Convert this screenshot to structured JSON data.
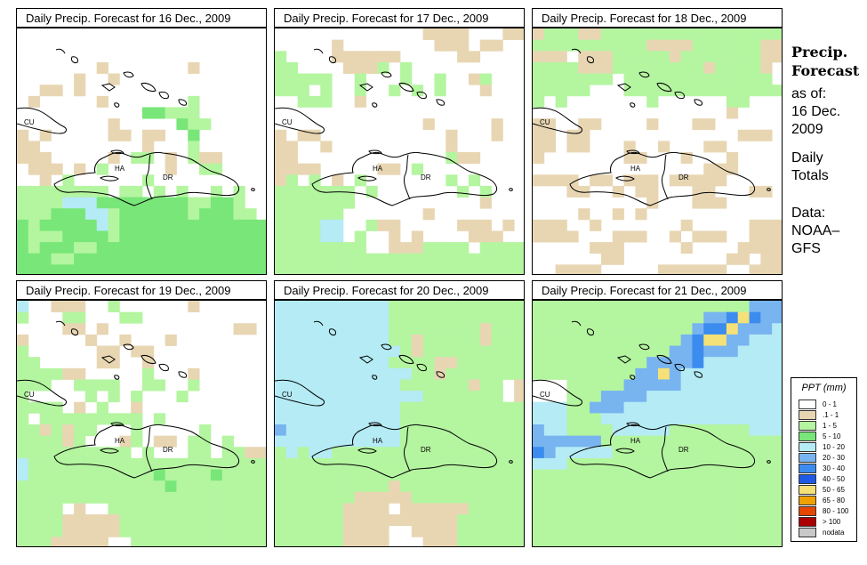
{
  "panels": [
    {
      "title": "Daily Precip. Forecast for  16 Dec., 2009"
    },
    {
      "title": "Daily Precip. Forecast for  17 Dec., 2009"
    },
    {
      "title": "Daily Precip. Forecast for  18 Dec., 2009"
    },
    {
      "title": "Daily Precip. Forecast for  19 Dec., 2009"
    },
    {
      "title": "Daily Precip. Forecast for  20 Dec., 2009"
    },
    {
      "title": "Daily Precip. Forecast for  21 Dec., 2009"
    }
  ],
  "map_labels": {
    "cuba": "CU",
    "haiti": "HA",
    "dr": "DR"
  },
  "side": {
    "title_line1": "Precip.",
    "title_line2": "Forecast",
    "asof": "as of:",
    "date_line1": "16 Dec.",
    "date_line2": "2009",
    "daily1": "Daily",
    "daily2": "Totals",
    "data1": "Data:",
    "data2": "NOAA–",
    "data3": "GFS"
  },
  "legend": {
    "title": "PPT (mm)",
    "items": [
      {
        "label": "0 - 1",
        "color": "#ffffff"
      },
      {
        "label": ".1 - 1",
        "color": "#e8d6b3"
      },
      {
        "label": "1 - 5",
        "color": "#b4f5a0"
      },
      {
        "label": "5 - 10",
        "color": "#78e678"
      },
      {
        "label": "10 - 20",
        "color": "#b4ebf5"
      },
      {
        "label": "20 - 30",
        "color": "#78b4f0"
      },
      {
        "label": "30 - 40",
        "color": "#3c8cf0"
      },
      {
        "label": "40 - 50",
        "color": "#1e5ae6"
      },
      {
        "label": "50 - 65",
        "color": "#f5e178"
      },
      {
        "label": "65 - 80",
        "color": "#f0a000"
      },
      {
        "label": "80 - 100",
        "color": "#e64600"
      },
      {
        "label": "> 100",
        "color": "#aa0000"
      },
      {
        "label": "nodata",
        "color": "#c8c8c8"
      }
    ]
  },
  "grids": [
    [
      "......................",
      "......................",
      "......................",
      ".......T.......T......",
      ".....T..T.............",
      "..TT.T................",
      ".T.....T.......L......",
      "...........GGLLL......",
      "........T.....GLL.....",
      "T.T.....TT.TT..G......",
      "TT.........T...L......",
      "TTT.....T.LL.T.LTT....",
      ".TTT.T.L.....T..LL....",
      "..T.L......L..........",
      "LLLLLLLL.LL.L.L..L.L..",
      "LLLLBBBGGGGGGGGLLGGL..",
      "LLLGGGBBLGGGGGGLGGGLL.",
      "GLGGGGGBLGGGGGGGGGGGGG",
      "GLLLGGGGLGGGGGGGGGGGGG",
      "GLGGGLLGGGGGGGGGGGGGGG",
      "GGGLLGGGGGGGGGGGGGGGGG",
      "GGGGGGGGGGGGGGGGGGGGGG"
    ],
    [
      ".............TTTT...TT",
      ".....T........TTT.TT..",
      "L....TTTTTT.....TT....",
      "LL....TTTL.L..........",
      "LLLLL..L...L..L..TL...",
      "LLL.L..L..L.L.L...T...",
      "..LLL..T..............",
      "......................",
      ".............T.....T..",
      "T.TT...........T...T..",
      "TT..T..........T......",
      "TT.............LTT....",
      "TTTT.....TT.L.........",
      "TL.L.T.L.......L.L....",
      "LLLLLLL.L.......L.L...",
      "LLLLLLL...........T...",
      "LLLLLL.......T........",
      "LLLLBB..LTT.....TTT.T.",
      "LLLLBB.L..T.T....TTT..",
      "LLLLLLLL..TTTLLLL.LLLL",
      "LLLLLLLLLLLLLLLLLLLLLL",
      "LLLLLLLLLLLLLLLLLLLLLL"
    ],
    [
      "TLLLTTLLLLLLLLLLLLLLLL",
      "LLLLLLLLLLTTTTLLLLLLTT",
      "TTT.TTTLLLLLTLLLLLLLTT",
      "LLLLTTTLLLLLLLLTLLLLT.",
      "LLLLLLL.LLLLLLLLLLLLL.",
      "LLLLL...LLLLLLLLLLLLLL",
      "L.L.......L......LL...",
      ".................T....",
      "TT..TT....T...TT......",
      "TT.TT.............TTT.",
      "TT.TT...T..T...TT.....",
      "T.......TT...T...T....",
      "...............TTT....",
      "TTTT.TT.TTT.TTTTT.....",
      "...TT..T.TT...TT...TT.",
      "..........T...TTT.....",
      "....T..T.T............",
      "TTT..T.......T.....TTT",
      "TTTT...TTT..T.TTT..TTT",
      ".....TTT.....T....TTTT",
      "......TT.........TT.TT",
      "..TTTT.....TTTTTT..TTT"
    ],
    [
      "B..TTT..L......T......",
      "L...LL...LL...........",
      "....TT.T...........TT.",
      "T.....T..T...T........",
      "L......TT.TT..........",
      "LL.....TT..T..........",
      "LLLLTT.....L...T......",
      "LLL..LLLL..LL..L......",
      "L.....L.L.L...L.......",
      "LLLL.T.L..T...........",
      "L.LLLLLLLLL.L.........",
      "LLTLTLL...L.....L.....",
      "LLLLTL...TL.TT.LL.L...",
      "LLLLLLLLLL.L...LL.LLTT",
      "BLLLLLLLLLLLLLLLLLLLLL",
      "BLLLLLLLLLLLGLLLLGLLLL",
      "LLLLLLLLLLLLLGLLLLLLLL",
      "LLLLLLLLLLLLLLLLLLLLLL",
      "LLLL.T..LLLLLLLLLLLLLL",
      "LLLLTTTTTLLLLLLLLLLLLL",
      "LLLLTTTTTLLLLLLLLLLLLL",
      "LLLTTTTT..LLLLLLLLLLLL"
    ],
    [
      "BBBBBBBBBBLLLLLLLLLLLL",
      "BBBBBBBBBBLLLLLLLLLLLL",
      "BBBBBBBBBBLLLLLLLLTLLL",
      "BBBBBBBBBBLLTLLLLLTLLL",
      "BBBBBBBBBBBLTLLLLLLLLL",
      "BBBBBBBBBBLLLLTTLLLLLL",
      "BBBBBBBBBBBBLLTLLLLLLL",
      "BBBBBBBBBBBLLLLLLTLL.T",
      "BBBBBBBBBBBBBLLLLLLL.T",
      "BBBBBBBBBBBLLLLLLLLLLL",
      "BBBBBBBBBBBLLLLLLLLLLL",
      "MBBBBBBBBBBLLLLLLLLLLL",
      "BBBBBBBBBBBLLLLLLLLLLL",
      "LBLBBLLLLLLLLLLLLLLLLL",
      "LLLLLLLLLLLLLLLLLLLLLL",
      "LLLLLLLLLLLLLLLLLLLLLL",
      "LLLLLLLLLLTLLLLLLLLLLL",
      "LLLLLLLTTTTTLLLLLLLLLL",
      "LLLLLLTTTT.TTTTTTLLLLL",
      "LLLLLLTTTTTTTTTTLLLLLL",
      "LLLLLLTTTT..TTTTLLLLLL",
      "LLLLLLTTTT...TTTLLLLLL"
    ],
    [
      "LLLLLLLLLLLLLLLLLLLMMM",
      "LLLLLLLLLLLLLLLMMDYDMM",
      "LLLLLLLLLLLLLLMDDYMMMB",
      "LLLLLLLLLLLLLMDYYMMBBB",
      "LLLLLLLLLLLLMMDMMMBBBB",
      "LLLLLLLLLLMMMMDBBBBBBB",
      "LLLLLLLLLMMYMBBBBBBBBB",
      "...LLLLLMMMMMBBBBBBBBB",
      "...LLLMMMMBBBBBBBBBBBB",
      "BBBLLMMMBBBBBBBBBBBBBB",
      "BBBLLLBBBBBBBBBBBBBBBB",
      "MBBLLLLBBBBBLLLLLLLBBB",
      "MMMMMMLLLLLLLLLLLLLLLL",
      "DMBBBBBLLLLLLLLLLLLLLL",
      "BBBLLLLLLLLLLLLLLLLLLL",
      "LLLLLLLLLLLLLLLLLLLLLL",
      "LLLLLLLLLLLLLLLLLLLLLL",
      "LLLLLLLLLLLLLLLLLLLLLL",
      "LLLLLLLLLLLLLLLLLLLLLL",
      "LLLLLLLLLLLLLLLLLLLLLL",
      "LLLLLLLLLLLLLLLLLLLLLL",
      "LLLLLLLLLLLLLLLLLLLLLL"
    ]
  ]
}
